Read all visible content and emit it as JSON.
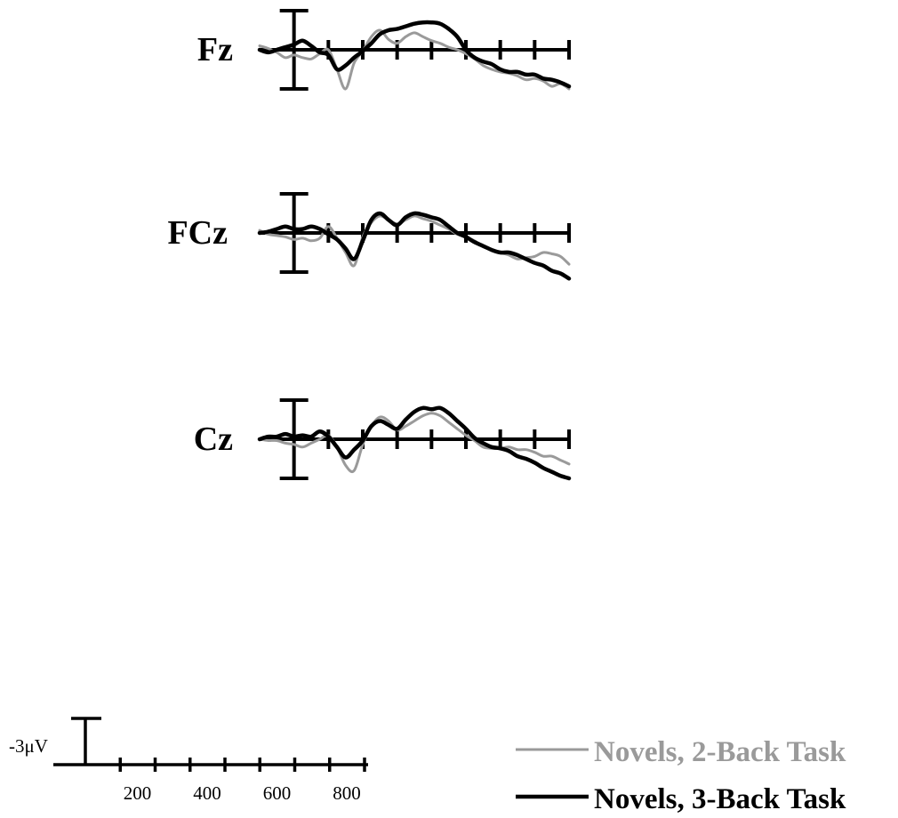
{
  "chart_data": {
    "type": "line",
    "xlabel": "",
    "ylabel": "",
    "scale": {
      "voltage_label": "-3μV",
      "voltage_uV": -3,
      "x_tick_labels": [
        "200",
        "400",
        "600",
        "800"
      ],
      "x_tick_values": [
        200,
        400,
        600,
        800
      ],
      "x_minor_ticks": [
        100,
        200,
        300,
        400,
        500,
        600,
        700,
        800
      ]
    },
    "xlim": [
      -100,
      800
    ],
    "ylim_uV": [
      -3,
      3
    ],
    "negative_up": true,
    "series_styles": [
      {
        "color": "#9a9a9a",
        "width": 3
      },
      {
        "color": "#000000",
        "width": 4.5
      }
    ],
    "legend": {
      "placement": "bottom-right",
      "items": [
        {
          "label": "Novels, 2-Back Task",
          "color": "#9a9a9a"
        },
        {
          "label": "Novels, 3-Back Task",
          "color": "#000000"
        }
      ]
    },
    "panels": [
      {
        "label": "Fz",
        "x": [
          -100,
          -75,
          -50,
          -25,
          0,
          25,
          50,
          75,
          100,
          125,
          150,
          175,
          200,
          225,
          250,
          275,
          300,
          325,
          350,
          375,
          400,
          425,
          450,
          475,
          500,
          525,
          550,
          575,
          600,
          625,
          650,
          675,
          700,
          725,
          750,
          775,
          800
        ],
        "series": [
          {
            "values": [
              -0.3,
              -0.1,
              0.2,
              0.6,
              0.4,
              0.6,
              0.7,
              0.3,
              0.0,
              1.5,
              3.0,
              1.0,
              0.1,
              -1.0,
              -1.5,
              -0.8,
              -0.5,
              -1.0,
              -1.3,
              -1.0,
              -0.7,
              -0.5,
              -0.2,
              0.0,
              0.3,
              0.7,
              1.2,
              1.5,
              1.7,
              1.8,
              2.0,
              2.3,
              2.2,
              2.4,
              2.8,
              2.6,
              3.0
            ]
          },
          {
            "values": [
              0.0,
              0.2,
              0.0,
              -0.2,
              -0.4,
              -0.7,
              -0.3,
              0.2,
              0.4,
              1.5,
              1.2,
              0.6,
              0.1,
              -0.5,
              -1.2,
              -1.5,
              -1.6,
              -1.8,
              -2.0,
              -2.1,
              -2.1,
              -2.0,
              -1.6,
              -1.0,
              0.0,
              0.6,
              0.9,
              1.1,
              1.5,
              1.7,
              1.7,
              1.9,
              1.9,
              2.2,
              2.3,
              2.5,
              2.8
            ]
          }
        ]
      },
      {
        "label": "FCz",
        "x": [
          -100,
          -75,
          -50,
          -25,
          0,
          25,
          50,
          75,
          100,
          125,
          150,
          175,
          200,
          225,
          250,
          275,
          300,
          325,
          350,
          375,
          400,
          425,
          450,
          475,
          500,
          525,
          550,
          575,
          600,
          625,
          650,
          675,
          700,
          725,
          750,
          775,
          800
        ],
        "series": [
          {
            "values": [
              -0.2,
              0.1,
              0.2,
              0.3,
              0.5,
              0.4,
              0.6,
              0.4,
              -0.5,
              0.4,
              1.5,
              2.5,
              0.3,
              -0.8,
              -1.3,
              -1.0,
              -0.7,
              -1.0,
              -1.3,
              -1.1,
              -0.9,
              -0.6,
              -0.3,
              0.1,
              0.3,
              0.6,
              1.0,
              1.3,
              1.5,
              1.7,
              2.0,
              1.9,
              1.8,
              1.5,
              1.6,
              1.8,
              2.4
            ]
          },
          {
            "values": [
              0.0,
              -0.1,
              -0.3,
              -0.5,
              -0.3,
              -0.3,
              -0.5,
              -0.3,
              0.1,
              0.5,
              1.2,
              2.0,
              0.6,
              -1.0,
              -1.5,
              -1.0,
              -0.6,
              -1.2,
              -1.5,
              -1.4,
              -1.2,
              -1.0,
              -0.5,
              0.0,
              0.3,
              0.7,
              1.0,
              1.3,
              1.5,
              1.5,
              1.7,
              2.0,
              2.3,
              2.5,
              2.9,
              3.1,
              3.5
            ]
          }
        ]
      },
      {
        "label": "Cz",
        "x": [
          -100,
          -75,
          -50,
          -25,
          0,
          25,
          50,
          75,
          100,
          125,
          150,
          175,
          200,
          225,
          250,
          275,
          300,
          325,
          350,
          375,
          400,
          425,
          450,
          475,
          500,
          525,
          550,
          575,
          600,
          625,
          650,
          675,
          700,
          725,
          750,
          775,
          800
        ],
        "series": [
          {
            "values": [
              0.0,
              0.1,
              0.1,
              0.3,
              0.4,
              0.6,
              0.3,
              0.0,
              -0.3,
              0.6,
              2.0,
              2.4,
              0.4,
              -1.0,
              -1.7,
              -1.4,
              -0.7,
              -1.0,
              -1.4,
              -1.8,
              -2.0,
              -1.8,
              -1.3,
              -0.8,
              -0.3,
              0.1,
              0.6,
              0.7,
              0.7,
              0.6,
              0.8,
              0.8,
              1.0,
              1.3,
              1.3,
              1.6,
              1.9
            ]
          },
          {
            "values": [
              0.0,
              -0.2,
              -0.2,
              -0.4,
              -0.2,
              -0.3,
              -0.2,
              -0.6,
              -0.2,
              0.6,
              1.4,
              0.8,
              0.1,
              -1.0,
              -1.4,
              -1.1,
              -0.8,
              -1.5,
              -2.1,
              -2.4,
              -2.3,
              -2.4,
              -2.0,
              -1.4,
              -0.8,
              -0.1,
              0.3,
              0.6,
              0.7,
              0.9,
              1.3,
              1.5,
              1.8,
              2.2,
              2.5,
              2.8,
              3.0
            ]
          }
        ]
      }
    ]
  }
}
